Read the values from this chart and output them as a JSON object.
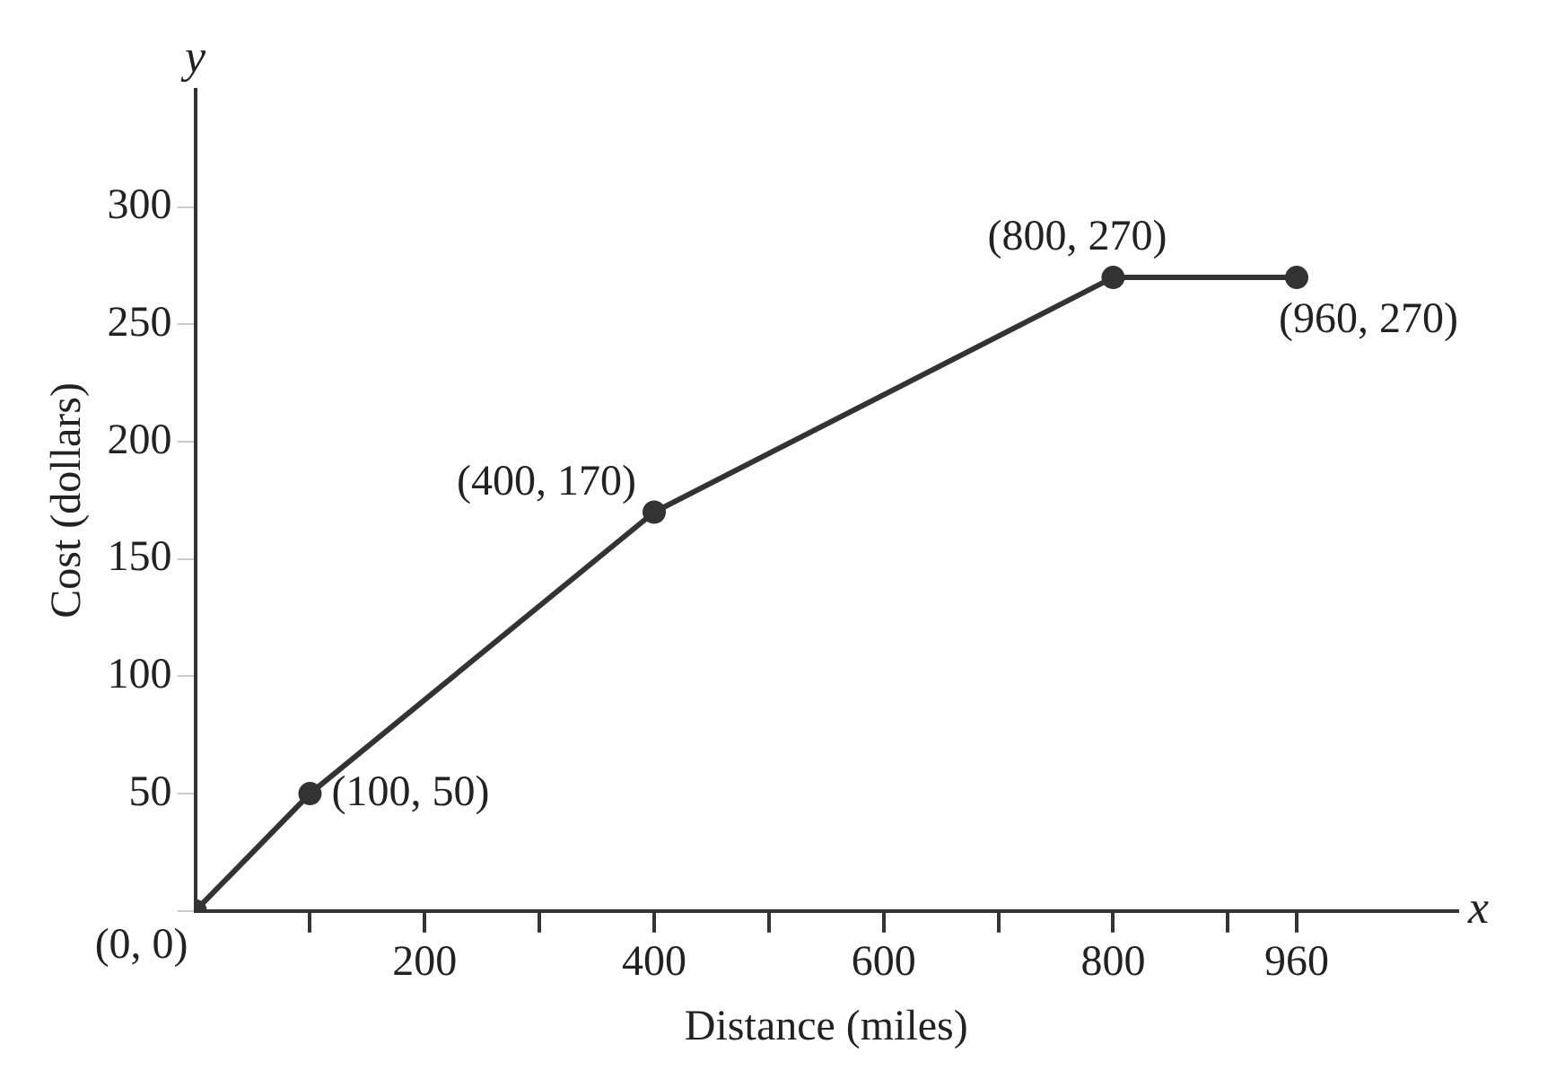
{
  "chart_data": {
    "type": "line",
    "xlabel": "Distance (miles)",
    "ylabel": "Cost (dollars)",
    "x": [
      0,
      100,
      400,
      800,
      960
    ],
    "series": [
      {
        "color": "#333333",
        "values": [
          0,
          50,
          170,
          270,
          270
        ]
      }
    ],
    "xlim": [
      0,
      1100
    ],
    "ylim": [
      0,
      350
    ],
    "xticks": [
      {
        "value": 100,
        "label": null
      },
      200,
      {
        "value": 300,
        "label": null
      },
      400,
      {
        "value": 500,
        "label": null
      },
      600,
      {
        "value": 700,
        "label": null
      },
      800,
      {
        "value": 900,
        "label": null
      },
      960
    ],
    "yticks": [
      {
        "value": 0,
        "label": null
      },
      50,
      100,
      150,
      200,
      250,
      300
    ],
    "grid": false,
    "legend": false,
    "marker": "circle",
    "line_style": "solid",
    "annotations": [
      "y",
      "x",
      {
        "text": "(0, 0)",
        "x": 0,
        "y": 0
      },
      {
        "text": "(100, 50)",
        "x": 100,
        "y": 50
      },
      {
        "text": "(400, 170)",
        "x": 400,
        "y": 170
      },
      {
        "text": "(800, 270)",
        "x": 800,
        "y": 270
      },
      {
        "text": "(960, 270)",
        "x": 960,
        "y": 270
      }
    ]
  }
}
